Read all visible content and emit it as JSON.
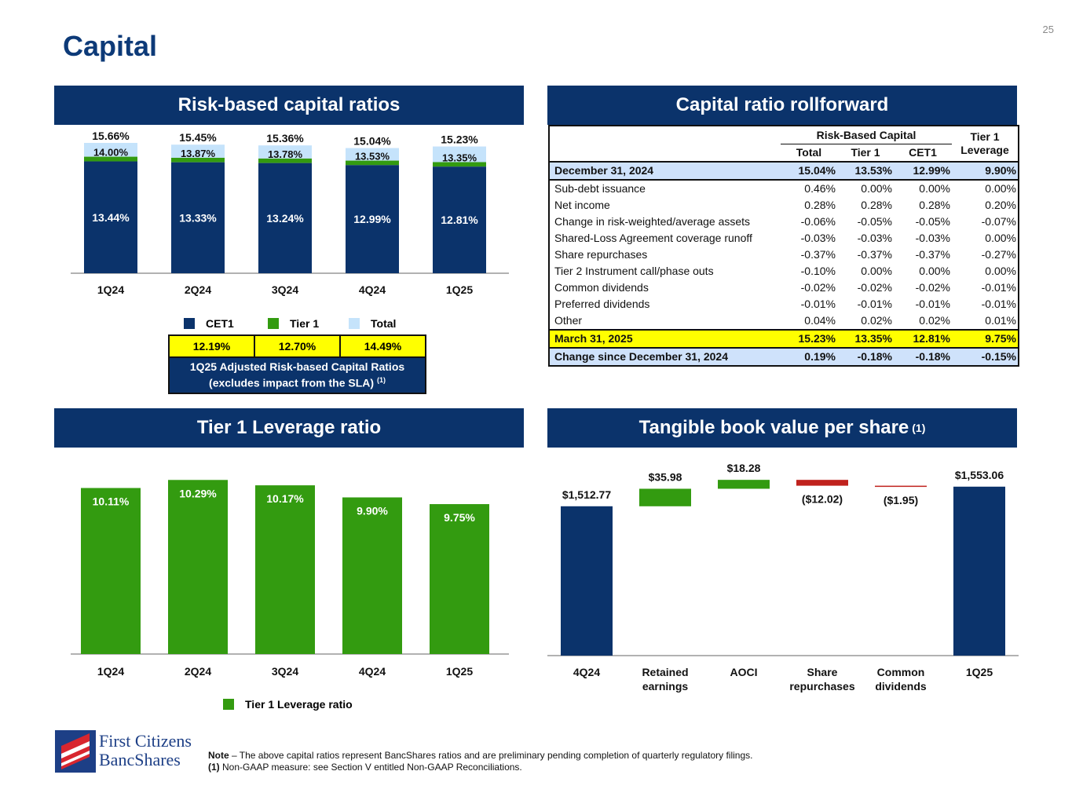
{
  "page": {
    "title": "Capital",
    "number": "25"
  },
  "headers": {
    "rbc": "Risk-based capital ratios",
    "rollforward": "Capital ratio rollforward",
    "leverage": "Tier 1 Leverage ratio",
    "tbv": "Tangible book value per share",
    "tbv_sup": "(1)"
  },
  "chart_data": [
    {
      "type": "bar",
      "stacked": true,
      "categories": [
        "1Q24",
        "2Q24",
        "3Q24",
        "4Q24",
        "1Q25"
      ],
      "series": [
        {
          "name": "CET1",
          "values": [
            13.44,
            13.33,
            13.24,
            12.99,
            12.81
          ],
          "labels": [
            "13.44%",
            "13.33%",
            "13.24%",
            "12.99%",
            "12.81%"
          ],
          "color": "#0b336b"
        },
        {
          "name": "Tier 1",
          "values": [
            14.0,
            13.87,
            13.78,
            13.53,
            13.35
          ],
          "labels": [
            "14.00%",
            "13.87%",
            "13.78%",
            "13.53%",
            "13.35%"
          ],
          "color": "#339b10"
        },
        {
          "name": "Total",
          "values": [
            15.66,
            15.45,
            15.36,
            15.04,
            15.23
          ],
          "labels": [
            "15.66%",
            "15.45%",
            "15.36%",
            "15.04%",
            "15.23%"
          ],
          "color": "#c5e3fb"
        }
      ],
      "legend": "bottom"
    },
    {
      "type": "bar",
      "categories": [
        "1Q24",
        "2Q24",
        "3Q24",
        "4Q24",
        "1Q25"
      ],
      "series": [
        {
          "name": "Tier 1 Leverage ratio",
          "values": [
            10.11,
            10.29,
            10.17,
            9.9,
            9.75
          ],
          "labels": [
            "10.11%",
            "10.29%",
            "10.17%",
            "9.90%",
            "9.75%"
          ],
          "color": "#339b10"
        }
      ],
      "legend": "bottom"
    },
    {
      "type": "waterfall",
      "categories": [
        "4Q24",
        "Retained earnings",
        "AOCI",
        "Share repurchases",
        "Common dividends",
        "1Q25"
      ],
      "values": [
        1512.77,
        35.98,
        18.28,
        -12.02,
        -1.95,
        1553.06
      ],
      "kinds": [
        "total",
        "delta",
        "delta",
        "delta",
        "delta",
        "total"
      ],
      "labels": [
        "$1,512.77",
        "$35.98",
        "$18.28",
        "($12.02)",
        "($1.95)",
        "$1,553.06"
      ],
      "colors": {
        "total": "#0b336b",
        "up": "#339b10",
        "down": "#c0221d"
      }
    }
  ],
  "adjusted": {
    "values": [
      "12.19%",
      "12.70%",
      "14.49%"
    ],
    "caption1": "1Q25 Adjusted Risk-based Capital Ratios",
    "caption2": "(excludes impact from the SLA)",
    "sup": "(1)"
  },
  "table": {
    "group": "Risk-Based Capital",
    "cols": [
      "Total",
      "Tier 1",
      "CET1"
    ],
    "lev1": "Tier 1",
    "lev2": "Leverage",
    "rows": [
      [
        "December 31, 2024",
        "15.04%",
        "13.53%",
        "12.99%",
        "9.90%"
      ],
      [
        "Sub-debt issuance",
        "0.46%",
        "0.00%",
        "0.00%",
        "0.00%"
      ],
      [
        "Net income",
        "0.28%",
        "0.28%",
        "0.28%",
        "0.20%"
      ],
      [
        "Change in risk-weighted/average assets",
        "-0.06%",
        "-0.05%",
        "-0.05%",
        "-0.07%"
      ],
      [
        "Shared-Loss Agreement coverage runoff",
        "-0.03%",
        "-0.03%",
        "-0.03%",
        "0.00%"
      ],
      [
        "Share repurchases",
        "-0.37%",
        "-0.37%",
        "-0.37%",
        "-0.27%"
      ],
      [
        "Tier 2 Instrument call/phase outs",
        "-0.10%",
        "0.00%",
        "0.00%",
        "0.00%"
      ],
      [
        "Common dividends",
        "-0.02%",
        "-0.02%",
        "-0.02%",
        "-0.01%"
      ],
      [
        "Preferred dividends",
        "-0.01%",
        "-0.01%",
        "-0.01%",
        "-0.01%"
      ],
      [
        "Other",
        "0.04%",
        "0.02%",
        "0.02%",
        "0.01%"
      ],
      [
        "March 31, 2025",
        "15.23%",
        "13.35%",
        "12.81%",
        "9.75%"
      ],
      [
        "Change since December 31, 2024",
        "0.19%",
        "-0.18%",
        "-0.18%",
        "-0.15%"
      ]
    ]
  },
  "footer": {
    "logo": "First Citizens BancShares",
    "note_label": "Note",
    "note": " – The above capital ratios represent BancShares ratios and are preliminary pending completion of quarterly regulatory filings.",
    "fn_label": "(1)",
    "fn": " Non-GAAP measure: see Section V entitled Non-GAAP Reconciliations."
  }
}
